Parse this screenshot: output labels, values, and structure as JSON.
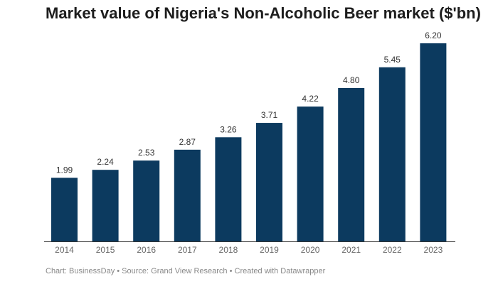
{
  "chart_data": {
    "type": "bar",
    "title": "Market value of Nigeria's Non-Alcoholic Beer market ($'bn)",
    "categories": [
      "2014",
      "2015",
      "2016",
      "2017",
      "2018",
      "2019",
      "2020",
      "2021",
      "2022",
      "2023"
    ],
    "values": [
      1.99,
      2.24,
      2.53,
      2.87,
      3.26,
      3.71,
      4.22,
      4.8,
      5.45,
      6.2
    ],
    "data_labels": [
      "1.99",
      "2.24",
      "2.53",
      "2.87",
      "3.26",
      "3.71",
      "4.22",
      "4.80",
      "5.45",
      "6.20"
    ],
    "xlabel": "",
    "ylabel": "",
    "ylim": [
      0,
      6.2
    ],
    "grid": false,
    "bar_color": "#0c3a5f"
  },
  "footer": "Chart: BusinessDay • Source: Grand View Research • Created with Datawrapper"
}
